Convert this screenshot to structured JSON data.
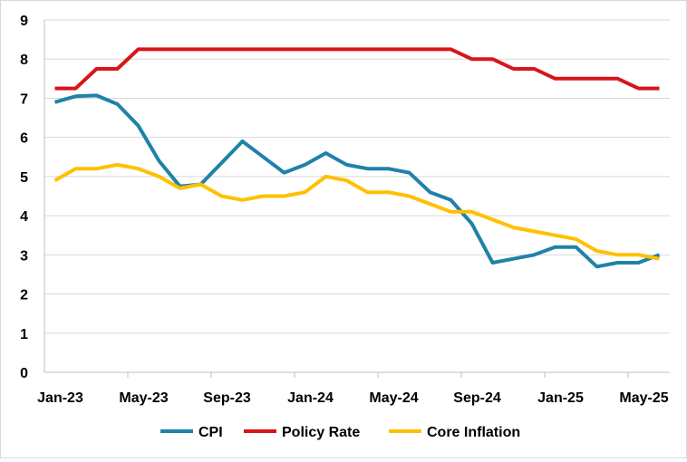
{
  "chart_data": {
    "type": "line",
    "title": "",
    "xlabel": "",
    "ylabel": "",
    "ylim": [
      0,
      9
    ],
    "yticks": [
      "0",
      "1",
      "2",
      "3",
      "4",
      "5",
      "6",
      "7",
      "8",
      "9"
    ],
    "x": [
      "Jan-23",
      "Feb-23",
      "Mar-23",
      "Apr-23",
      "May-23",
      "Jun-23",
      "Jul-23",
      "Aug-23",
      "Sep-23",
      "Oct-23",
      "Nov-23",
      "Dec-23",
      "Jan-24",
      "Feb-24",
      "Mar-24",
      "Apr-24",
      "May-24",
      "Jun-24",
      "Jul-24",
      "Aug-24",
      "Sep-24",
      "Oct-24",
      "Nov-24",
      "Dec-24",
      "Jan-25",
      "Feb-25",
      "Mar-25",
      "Apr-25",
      "May-25",
      "Jun-25"
    ],
    "xtick_labels": [
      "Jan-23",
      "May-23",
      "Sep-23",
      "Jan-24",
      "May-24",
      "Sep-24",
      "Jan-25",
      "May-25"
    ],
    "grid": true,
    "legend": "bottom",
    "series": [
      {
        "name": "CPI",
        "color": "#1f82a8",
        "values": [
          6.9,
          7.05,
          7.07,
          6.85,
          6.3,
          5.4,
          4.75,
          4.8,
          5.35,
          5.9,
          5.5,
          5.1,
          5.3,
          5.6,
          5.3,
          5.2,
          5.2,
          5.1,
          4.6,
          4.4,
          3.8,
          2.8,
          2.9,
          3.0,
          3.2,
          3.2,
          2.7,
          2.8,
          2.8,
          3.0
        ]
      },
      {
        "name": "Policy Rate",
        "color": "#d9141b",
        "values": [
          7.25,
          7.25,
          7.75,
          7.75,
          8.25,
          8.25,
          8.25,
          8.25,
          8.25,
          8.25,
          8.25,
          8.25,
          8.25,
          8.25,
          8.25,
          8.25,
          8.25,
          8.25,
          8.25,
          8.25,
          8.0,
          8.0,
          7.75,
          7.75,
          7.5,
          7.5,
          7.5,
          7.5,
          7.25,
          7.25
        ]
      },
      {
        "name": "Core Inflation",
        "color": "#ffc000",
        "values": [
          4.9,
          5.2,
          5.2,
          5.3,
          5.2,
          5.0,
          4.7,
          4.8,
          4.5,
          4.4,
          4.5,
          4.5,
          4.6,
          5.0,
          4.9,
          4.6,
          4.6,
          4.5,
          4.3,
          4.1,
          4.1,
          3.9,
          3.7,
          3.6,
          3.5,
          3.4,
          3.1,
          3.0,
          3.0,
          2.9
        ]
      }
    ]
  }
}
